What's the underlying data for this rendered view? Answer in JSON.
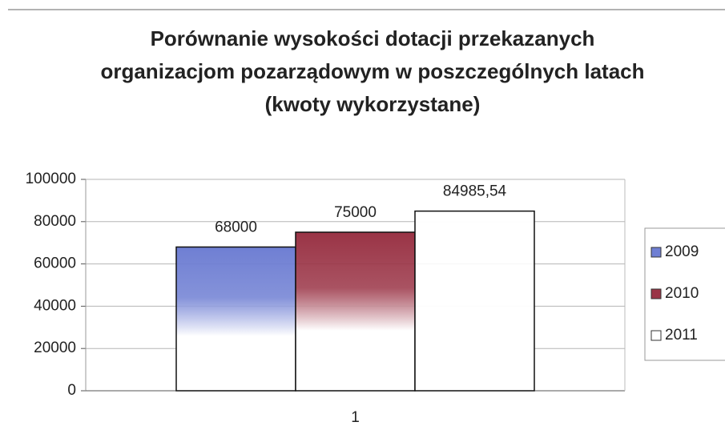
{
  "chart_data": {
    "type": "bar",
    "title": "Porównanie wysokości dotacji przekazanych organizacjom pozarządowym w poszczególnych latach (kwoty wykorzystane)",
    "categories": [
      "1"
    ],
    "series": [
      {
        "name": "2009",
        "color": "#6f7fd3",
        "values": [
          68000
        ]
      },
      {
        "name": "2010",
        "color": "#9a3446",
        "values": [
          75000
        ]
      },
      {
        "name": "2011",
        "color": "#ffffff",
        "values": [
          84985.54
        ],
        "value_labels": [
          "84985,54"
        ]
      }
    ],
    "ylim": [
      0,
      100000
    ],
    "yticks": [
      0,
      20000,
      40000,
      60000,
      80000,
      100000
    ],
    "grid": true,
    "legend": "right"
  }
}
